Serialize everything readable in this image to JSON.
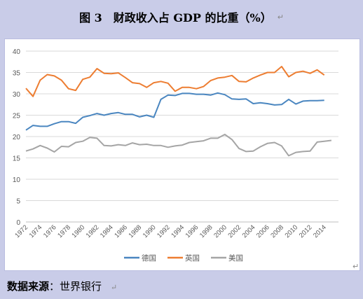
{
  "header": {
    "title": "图 3　财政收入占 GDP 的比重（%）",
    "para_mark": "↵"
  },
  "footer": {
    "source_label": "数据来源",
    "source_sep": "：",
    "source_value": "世界银行",
    "para_mark": "↵"
  },
  "chart_data": {
    "type": "line",
    "title": "",
    "xlabel": "",
    "ylabel": "",
    "ylim": [
      0,
      40
    ],
    "yticks": [
      0,
      5,
      10,
      15,
      20,
      25,
      30,
      35,
      40
    ],
    "x": [
      1972,
      1973,
      1974,
      1975,
      1976,
      1977,
      1978,
      1979,
      1980,
      1981,
      1982,
      1983,
      1984,
      1985,
      1986,
      1987,
      1988,
      1989,
      1990,
      1991,
      1992,
      1993,
      1994,
      1995,
      1996,
      1997,
      1998,
      1999,
      2000,
      2001,
      2002,
      2003,
      2004,
      2005,
      2006,
      2007,
      2008,
      2009,
      2010,
      2011,
      2012,
      2013,
      2014,
      2015
    ],
    "xtick_labels": [
      "1972",
      "1974",
      "1976",
      "1978",
      "1980",
      "1982",
      "1984",
      "1986",
      "1988",
      "1990",
      "1992",
      "1994",
      "1996",
      "1998",
      "2000",
      "2002",
      "2004",
      "2006",
      "2008",
      "2010",
      "2012",
      "2014"
    ],
    "grid": true,
    "legend_position": "bottom",
    "series": [
      {
        "name": "德国",
        "color": "#4a86c0",
        "values": [
          21.5,
          22.6,
          22.4,
          22.4,
          23.0,
          23.5,
          23.5,
          23.1,
          24.5,
          24.9,
          25.4,
          25.0,
          25.4,
          25.6,
          25.2,
          25.2,
          24.6,
          25.0,
          24.5,
          28.7,
          29.7,
          29.6,
          30.1,
          30.1,
          29.9,
          29.9,
          29.7,
          30.2,
          29.8,
          28.8,
          28.7,
          28.8,
          27.7,
          27.9,
          27.7,
          27.4,
          27.5,
          28.7,
          27.6,
          28.3,
          28.4,
          28.4,
          28.5,
          null
        ]
      },
      {
        "name": "英国",
        "color": "#ed7d31",
        "values": [
          31.3,
          29.4,
          33.2,
          34.5,
          34.2,
          33.2,
          31.2,
          30.8,
          33.4,
          33.9,
          35.9,
          34.8,
          34.7,
          34.9,
          33.8,
          32.6,
          32.4,
          31.5,
          32.6,
          32.9,
          32.5,
          30.6,
          31.5,
          31.5,
          31.2,
          31.7,
          33.1,
          33.7,
          33.9,
          34.3,
          32.9,
          32.8,
          33.7,
          34.4,
          35.0,
          35.0,
          36.4,
          34.0,
          35.0,
          35.3,
          34.8,
          35.6,
          34.4,
          null
        ]
      },
      {
        "name": "美国",
        "color": "#a5a5a5",
        "values": [
          16.6,
          17.1,
          17.9,
          17.3,
          16.4,
          17.7,
          17.6,
          18.6,
          18.9,
          19.8,
          19.6,
          17.9,
          17.8,
          18.1,
          17.9,
          18.5,
          18.1,
          18.2,
          17.9,
          17.9,
          17.5,
          17.8,
          18.0,
          18.6,
          18.8,
          19.0,
          19.6,
          19.6,
          20.5,
          19.3,
          17.2,
          16.5,
          16.6,
          17.6,
          18.4,
          18.6,
          17.8,
          15.5,
          16.3,
          16.5,
          16.6,
          18.7,
          18.9,
          19.1
        ]
      }
    ]
  }
}
